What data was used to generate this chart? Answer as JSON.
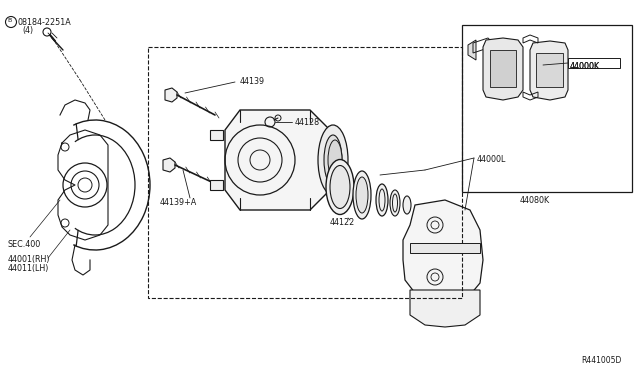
{
  "background_color": "#ffffff",
  "fig_width": 6.4,
  "fig_height": 3.72,
  "dpi": 100,
  "labels": {
    "bolt_label_1": "08184-2251A",
    "bolt_label_2": "(4)",
    "sec_label": "SEC.400",
    "part1_label": "44001(RH)",
    "part1b_label": "44011(LH)",
    "part2_label": "44139",
    "part3_label": "44128",
    "part4_label": "44139+A",
    "part5_label": "44122",
    "part6_label": "44000L",
    "part7_label": "44000K",
    "part8_label": "44080K",
    "diagram_id": "R441005D"
  },
  "colors": {
    "line": "#1a1a1a",
    "background": "#ffffff",
    "text": "#1a1a1a",
    "gray_light": "#c8c8c8",
    "gray_mid": "#a0a0a0"
  },
  "layout": {
    "center_box": [
      148,
      47,
      462,
      47,
      462,
      298,
      148,
      298
    ],
    "inset_box": [
      462,
      25,
      630,
      25,
      630,
      190,
      462,
      190
    ]
  }
}
